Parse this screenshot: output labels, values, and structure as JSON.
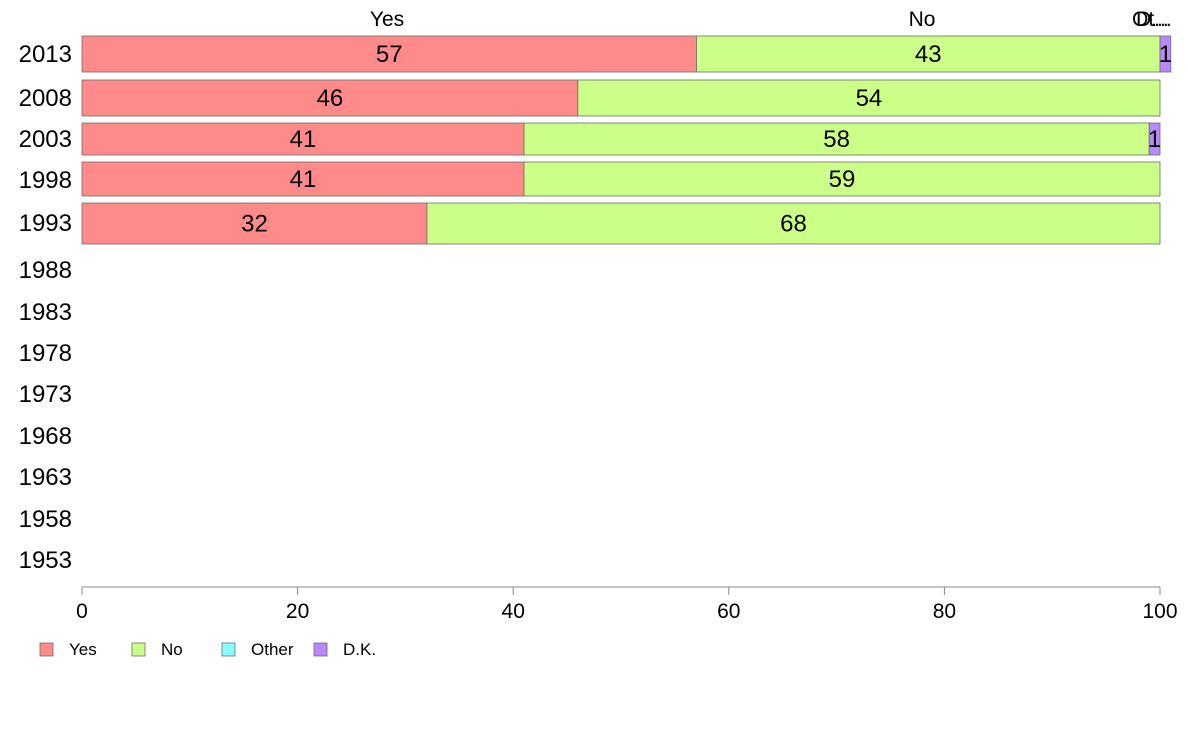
{
  "chart_data": {
    "type": "bar",
    "orientation": "horizontal",
    "stacked": true,
    "categories": [
      "2013",
      "2008",
      "2003",
      "1998",
      "1993",
      "1988",
      "1983",
      "1978",
      "1973",
      "1968",
      "1963",
      "1958",
      "1953"
    ],
    "series": [
      {
        "name": "Yes",
        "color": "#ff8a8a",
        "values": [
          57,
          46,
          41,
          41,
          32,
          null,
          null,
          null,
          null,
          null,
          null,
          null,
          null
        ]
      },
      {
        "name": "No",
        "color": "#ccff88",
        "values": [
          43,
          54,
          58,
          59,
          68,
          null,
          null,
          null,
          null,
          null,
          null,
          null,
          null
        ]
      },
      {
        "name": "Other",
        "color": "#88ffff",
        "values": [
          0,
          0,
          0,
          0,
          0,
          null,
          null,
          null,
          null,
          null,
          null,
          null,
          null
        ]
      },
      {
        "name": "D.K.",
        "color": "#bb88ff",
        "values": [
          1,
          0,
          1,
          0,
          0,
          null,
          null,
          null,
          null,
          null,
          null,
          null,
          null
        ]
      }
    ],
    "top_labels": [
      "Yes",
      "No",
      "Ot...",
      "D..."
    ],
    "x_ticks": [
      "0",
      "20",
      "40",
      "60",
      "80",
      "100"
    ],
    "xlim": [
      0,
      100
    ],
    "grid": false,
    "legend_position": "bottom-left"
  }
}
